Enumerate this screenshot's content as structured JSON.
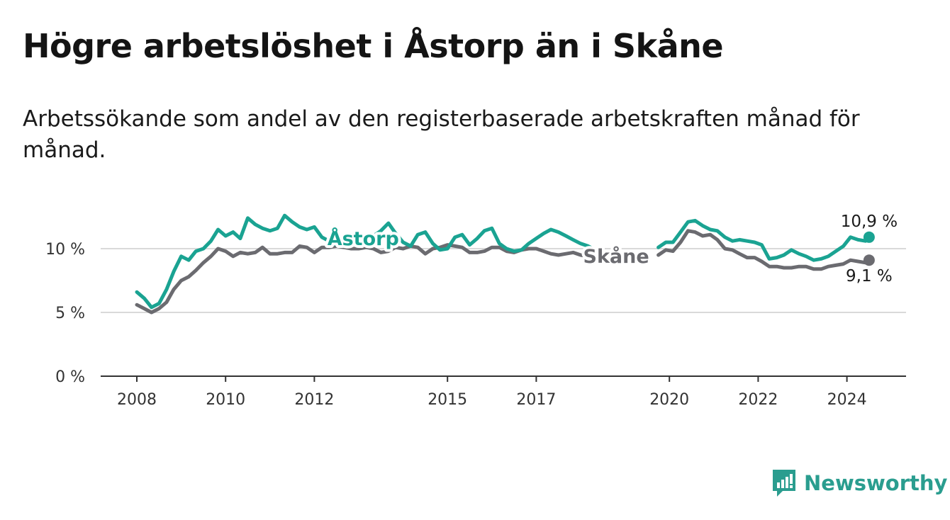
{
  "title": "Högre arbetslöshet i Åstorp än i Skåne",
  "subtitle": "Arbetssökande som andel av den registerbaserade arbetskraften månad för månad.",
  "brand": {
    "name": "Newsworthy",
    "icon": "newsworthy-logo-icon"
  },
  "colors": {
    "astorp": "#1aa392",
    "skane": "#6b6b70",
    "grid": "#d9d9d9",
    "axis": "#333333"
  },
  "chart_data": {
    "type": "line",
    "title": "Högre arbetslöshet i Åstorp än i Skåne",
    "subtitle": "Arbetssökande som andel av den registerbaserade arbetskraften månad för månad.",
    "xlim": [
      2008,
      2025.3
    ],
    "ylim": [
      0,
      12.5
    ],
    "y_ticks": [
      0,
      5,
      10
    ],
    "y_tick_labels": [
      "0 %",
      "5 %",
      "10 %"
    ],
    "x_ticks": [
      2008,
      2010,
      2012,
      2015,
      2017,
      2020,
      2022,
      2024
    ],
    "x_tick_labels": [
      "2008",
      "2010",
      "2012",
      "2015",
      "2017",
      "2020",
      "2022",
      "2024"
    ],
    "grid": true,
    "series": [
      {
        "name": "Åstorp",
        "color": "#1aa392",
        "label_x": 2013.1,
        "end_label": "10,9 %",
        "x": [
          2008.0,
          2008.17,
          2008.33,
          2008.5,
          2008.67,
          2008.83,
          2009.0,
          2009.17,
          2009.33,
          2009.5,
          2009.67,
          2009.83,
          2010.0,
          2010.17,
          2010.33,
          2010.5,
          2010.67,
          2010.83,
          2011.0,
          2011.17,
          2011.33,
          2011.5,
          2011.67,
          2011.83,
          2012.0,
          2012.17,
          2012.33,
          2012.5,
          2012.67,
          2012.83,
          2013.0,
          2013.17,
          2013.33,
          2013.5,
          2013.67,
          2013.83,
          2014.0,
          2014.17,
          2014.33,
          2014.5,
          2014.67,
          2014.83,
          2015.0,
          2015.17,
          2015.33,
          2015.5,
          2015.67,
          2015.83,
          2016.0,
          2016.17,
          2016.33,
          2016.5,
          2016.67,
          2016.83,
          2017.0,
          2017.17,
          2017.33,
          2017.5,
          2017.67,
          2017.83,
          2018.0,
          2018.17,
          2018.33,
          2018.5,
          null,
          2019.75,
          2019.92,
          2020.08,
          2020.25,
          2020.42,
          2020.58,
          2020.75,
          2020.92,
          2021.08,
          2021.25,
          2021.42,
          2021.58,
          2021.75,
          2021.92,
          2022.08,
          2022.25,
          2022.42,
          2022.58,
          2022.75,
          2022.92,
          2023.08,
          2023.25,
          2023.42,
          2023.58,
          2023.75,
          2023.92,
          2024.08,
          2024.25,
          2024.42,
          2024.5
        ],
        "y": [
          6.6,
          6.1,
          5.4,
          5.7,
          6.8,
          8.2,
          9.4,
          9.1,
          9.8,
          10.0,
          10.6,
          11.5,
          11.0,
          11.3,
          10.8,
          12.4,
          11.9,
          11.6,
          11.4,
          11.6,
          12.6,
          12.1,
          11.7,
          11.5,
          11.7,
          10.9,
          10.6,
          10.3,
          10.2,
          10.5,
          10.9,
          11.1,
          11.0,
          11.4,
          12.0,
          11.2,
          10.5,
          10.2,
          11.1,
          11.3,
          10.4,
          9.9,
          10.0,
          10.9,
          11.1,
          10.3,
          10.8,
          11.4,
          11.6,
          10.4,
          10.0,
          9.8,
          9.9,
          10.4,
          10.8,
          11.2,
          11.5,
          11.3,
          11.0,
          10.7,
          10.4,
          10.2,
          9.9,
          10.0,
          null,
          10.1,
          10.5,
          10.5,
          11.3,
          12.1,
          12.2,
          11.8,
          11.5,
          11.4,
          10.9,
          10.6,
          10.7,
          10.6,
          10.5,
          10.3,
          9.2,
          9.3,
          9.5,
          9.9,
          9.6,
          9.4,
          9.1,
          9.2,
          9.4,
          9.8,
          10.2,
          10.9,
          10.7,
          10.6,
          10.9
        ]
      },
      {
        "name": "Skåne",
        "color": "#6b6b70",
        "label_x": 2018.8,
        "end_label": "9,1 %",
        "x": [
          2008.0,
          2008.17,
          2008.33,
          2008.5,
          2008.67,
          2008.83,
          2009.0,
          2009.17,
          2009.33,
          2009.5,
          2009.67,
          2009.83,
          2010.0,
          2010.17,
          2010.33,
          2010.5,
          2010.67,
          2010.83,
          2011.0,
          2011.17,
          2011.33,
          2011.5,
          2011.67,
          2011.83,
          2012.0,
          2012.17,
          2012.33,
          2012.5,
          2012.67,
          2012.83,
          2013.0,
          2013.17,
          2013.33,
          2013.5,
          2013.67,
          2013.83,
          2014.0,
          2014.17,
          2014.33,
          2014.5,
          2014.67,
          2014.83,
          2015.0,
          2015.17,
          2015.33,
          2015.5,
          2015.67,
          2015.83,
          2016.0,
          2016.17,
          2016.33,
          2016.5,
          2016.67,
          2016.83,
          2017.0,
          2017.17,
          2017.33,
          2017.5,
          2017.67,
          2017.83,
          2018.0,
          2018.17,
          2018.33,
          2018.5,
          null,
          2019.75,
          2019.92,
          2020.08,
          2020.25,
          2020.42,
          2020.58,
          2020.75,
          2020.92,
          2021.08,
          2021.25,
          2021.42,
          2021.58,
          2021.75,
          2021.92,
          2022.08,
          2022.25,
          2022.42,
          2022.58,
          2022.75,
          2022.92,
          2023.08,
          2023.25,
          2023.42,
          2023.58,
          2023.75,
          2023.92,
          2024.08,
          2024.25,
          2024.42,
          2024.5
        ],
        "y": [
          5.6,
          5.3,
          5.0,
          5.3,
          5.8,
          6.8,
          7.5,
          7.8,
          8.3,
          8.9,
          9.4,
          10.0,
          9.8,
          9.4,
          9.7,
          9.6,
          9.7,
          10.1,
          9.6,
          9.6,
          9.7,
          9.7,
          10.2,
          10.1,
          9.7,
          10.1,
          10.1,
          10.2,
          10.1,
          10.0,
          10.0,
          10.1,
          10.0,
          9.7,
          9.8,
          10.1,
          10.0,
          10.2,
          10.1,
          9.6,
          10.0,
          10.1,
          10.3,
          10.2,
          10.1,
          9.7,
          9.7,
          9.8,
          10.1,
          10.1,
          9.8,
          9.7,
          9.9,
          10.0,
          10.0,
          9.8,
          9.6,
          9.5,
          9.6,
          9.7,
          9.5,
          9.4,
          9.3,
          9.4,
          null,
          9.5,
          9.9,
          9.8,
          10.5,
          11.4,
          11.3,
          11.0,
          11.1,
          10.7,
          10.0,
          9.9,
          9.6,
          9.3,
          9.3,
          9.0,
          8.6,
          8.6,
          8.5,
          8.5,
          8.6,
          8.6,
          8.4,
          8.4,
          8.6,
          8.7,
          8.8,
          9.1,
          9.0,
          8.9,
          9.1
        ]
      }
    ]
  }
}
